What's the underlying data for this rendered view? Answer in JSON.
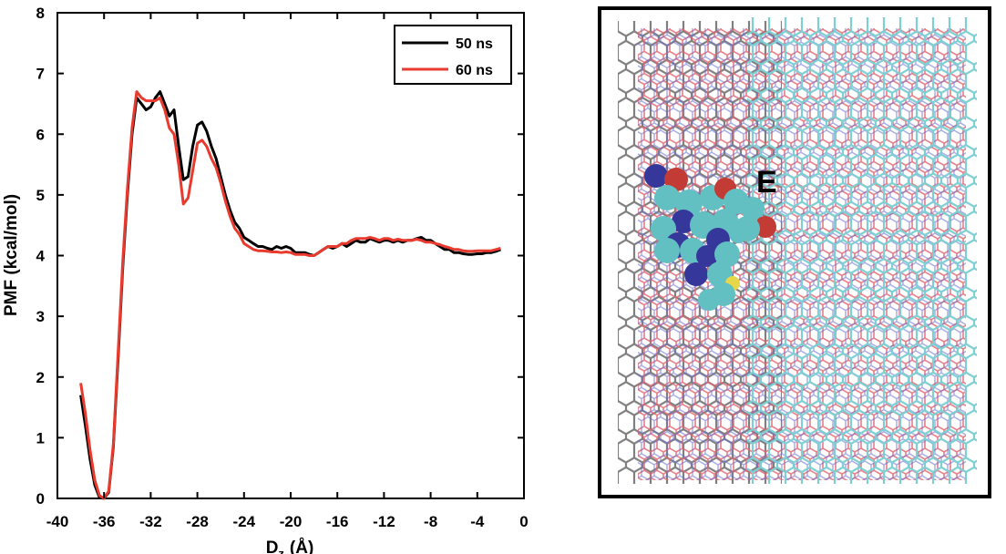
{
  "chart_data": {
    "type": "line",
    "xlabel": "D",
    "xlabel_sub": "z",
    "xlabel_unit": "(Å)",
    "ylabel": "PMF (kcal/mol)",
    "xlim": [
      -40,
      0
    ],
    "ylim": [
      0,
      8
    ],
    "xticks": [
      -40,
      -36,
      -32,
      -28,
      -24,
      -20,
      -16,
      -12,
      -8,
      -4,
      0
    ],
    "yticks": [
      0,
      1,
      2,
      3,
      4,
      5,
      6,
      7,
      8
    ],
    "grid": false,
    "legend_position": "top-right",
    "series": [
      {
        "name": "50 ns",
        "color": "#000000",
        "x": [
          -38.0,
          -37.6,
          -37.2,
          -36.8,
          -36.4,
          -36.0,
          -35.6,
          -35.2,
          -34.8,
          -34.4,
          -34.0,
          -33.6,
          -33.2,
          -32.8,
          -32.4,
          -32.0,
          -31.6,
          -31.2,
          -30.8,
          -30.4,
          -30.0,
          -29.6,
          -29.2,
          -28.8,
          -28.4,
          -28.0,
          -27.6,
          -27.2,
          -26.8,
          -26.4,
          -26.0,
          -25.6,
          -25.2,
          -24.8,
          -24.4,
          -24.0,
          -23.6,
          -23.2,
          -22.8,
          -22.4,
          -22.0,
          -21.6,
          -21.2,
          -20.8,
          -20.4,
          -20.0,
          -19.6,
          -19.2,
          -18.8,
          -18.4,
          -18.0,
          -17.6,
          -17.2,
          -16.8,
          -16.4,
          -16.0,
          -15.6,
          -15.2,
          -14.8,
          -14.4,
          -14.0,
          -13.6,
          -13.2,
          -12.8,
          -12.4,
          -12.0,
          -11.6,
          -11.2,
          -10.8,
          -10.4,
          -10.0,
          -9.6,
          -9.2,
          -8.8,
          -8.4,
          -8.0,
          -7.6,
          -7.2,
          -6.8,
          -6.4,
          -6.0,
          -5.6,
          -5.2,
          -4.8,
          -4.4,
          -4.0,
          -3.6,
          -3.2,
          -2.8,
          -2.4,
          -2.0
        ],
        "y": [
          1.7,
          1.2,
          0.65,
          0.22,
          0.02,
          0.0,
          0.1,
          0.85,
          2.3,
          3.8,
          5.0,
          6.0,
          6.6,
          6.5,
          6.4,
          6.45,
          6.6,
          6.7,
          6.5,
          6.3,
          6.4,
          5.8,
          5.25,
          5.3,
          5.8,
          6.15,
          6.2,
          6.05,
          5.8,
          5.6,
          5.3,
          5.0,
          4.75,
          4.55,
          4.45,
          4.3,
          4.25,
          4.2,
          4.15,
          4.15,
          4.12,
          4.1,
          4.15,
          4.12,
          4.15,
          4.12,
          4.05,
          4.05,
          4.05,
          4.02,
          4.0,
          4.05,
          4.1,
          4.15,
          4.12,
          4.15,
          4.2,
          4.15,
          4.2,
          4.25,
          4.22,
          4.22,
          4.28,
          4.25,
          4.22,
          4.25,
          4.25,
          4.22,
          4.25,
          4.22,
          4.25,
          4.25,
          4.28,
          4.3,
          4.25,
          4.25,
          4.2,
          4.15,
          4.1,
          4.1,
          4.05,
          4.05,
          4.03,
          4.02,
          4.02,
          4.03,
          4.03,
          4.05,
          4.05,
          4.07,
          4.1
        ]
      },
      {
        "name": "60 ns",
        "color": "#e83a2e",
        "x": [
          -38.0,
          -37.6,
          -37.2,
          -36.8,
          -36.4,
          -36.0,
          -35.6,
          -35.2,
          -34.8,
          -34.4,
          -34.0,
          -33.6,
          -33.2,
          -32.8,
          -32.4,
          -32.0,
          -31.6,
          -31.2,
          -30.8,
          -30.4,
          -30.0,
          -29.6,
          -29.2,
          -28.8,
          -28.4,
          -28.0,
          -27.6,
          -27.2,
          -26.8,
          -26.4,
          -26.0,
          -25.6,
          -25.2,
          -24.8,
          -24.4,
          -24.0,
          -23.6,
          -23.2,
          -22.8,
          -22.4,
          -22.0,
          -21.6,
          -21.2,
          -20.8,
          -20.4,
          -20.0,
          -19.6,
          -19.2,
          -18.8,
          -18.4,
          -18.0,
          -17.6,
          -17.2,
          -16.8,
          -16.4,
          -16.0,
          -15.6,
          -15.2,
          -14.8,
          -14.4,
          -14.0,
          -13.6,
          -13.2,
          -12.8,
          -12.4,
          -12.0,
          -11.6,
          -11.2,
          -10.8,
          -10.4,
          -10.0,
          -9.6,
          -9.2,
          -8.8,
          -8.4,
          -8.0,
          -7.6,
          -7.2,
          -6.8,
          -6.4,
          -6.0,
          -5.6,
          -5.2,
          -4.8,
          -4.4,
          -4.0,
          -3.6,
          -3.2,
          -2.8,
          -2.4,
          -2.0
        ],
        "y": [
          1.9,
          1.4,
          0.8,
          0.3,
          0.05,
          0.0,
          0.12,
          0.9,
          2.4,
          3.9,
          5.1,
          6.1,
          6.7,
          6.6,
          6.55,
          6.55,
          6.55,
          6.6,
          6.4,
          6.1,
          6.0,
          5.5,
          4.85,
          4.95,
          5.4,
          5.85,
          5.9,
          5.8,
          5.6,
          5.45,
          5.2,
          4.9,
          4.65,
          4.45,
          4.35,
          4.2,
          4.15,
          4.1,
          4.08,
          4.08,
          4.07,
          4.06,
          4.06,
          4.05,
          4.06,
          4.05,
          4.02,
          4.02,
          4.02,
          4.0,
          4.0,
          4.05,
          4.1,
          4.15,
          4.15,
          4.15,
          4.2,
          4.2,
          4.25,
          4.28,
          4.28,
          4.28,
          4.3,
          4.28,
          4.25,
          4.28,
          4.28,
          4.25,
          4.27,
          4.25,
          4.25,
          4.25,
          4.27,
          4.25,
          4.22,
          4.22,
          4.2,
          4.18,
          4.15,
          4.13,
          4.1,
          4.1,
          4.08,
          4.07,
          4.07,
          4.08,
          4.08,
          4.08,
          4.08,
          4.1,
          4.12
        ]
      }
    ]
  },
  "figure_label": "E"
}
